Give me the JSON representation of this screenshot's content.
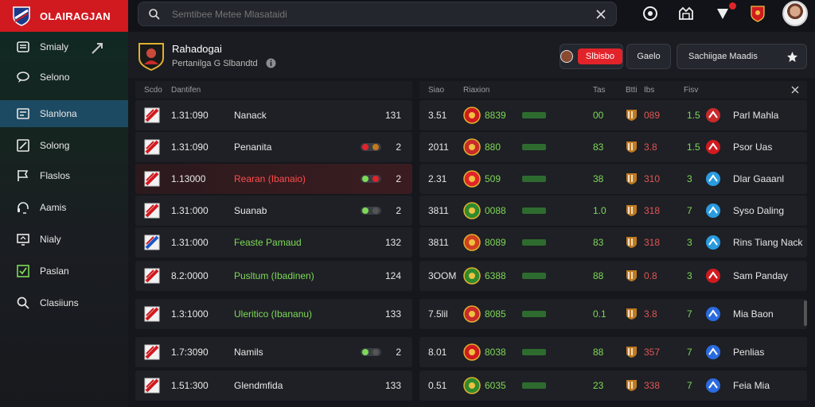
{
  "brand": {
    "name": "OLAIRAGJAN"
  },
  "sidebar": {
    "items": [
      {
        "label": "Smialy",
        "icon": "list-icon"
      },
      {
        "label": "Selono",
        "icon": "chat-icon"
      },
      {
        "label": "Slanlona",
        "icon": "cards-icon"
      },
      {
        "label": "Solong",
        "icon": "edit-icon"
      },
      {
        "label": "Flaslos",
        "icon": "flag-icon"
      },
      {
        "label": "Aamis",
        "icon": "headset-icon"
      },
      {
        "label": "Nialy",
        "icon": "monitor-icon"
      },
      {
        "label": "Paslan",
        "icon": "check-icon"
      },
      {
        "label": "Clasiiuns",
        "icon": "search-icon"
      }
    ],
    "active_index": 2
  },
  "search": {
    "placeholder": "Semtibee Metee Mlasataidi"
  },
  "header": {
    "club_name": "Rahadogai",
    "club_sub": "Pertanilga G Slbandtd",
    "live_label": "Slbisbo",
    "games_label": "Gaelo",
    "matches_label": "Sachiigae Maadis"
  },
  "left_table": {
    "columns": [
      "Scdo",
      "Dantifen"
    ],
    "rows": [
      {
        "time": "1.31:090",
        "team": "Nanack",
        "num": "131",
        "team_color": "#e8e8e8",
        "toggle": ""
      },
      {
        "time": "1.31:090",
        "team": "Penanita",
        "num": "2",
        "team_color": "#e8e8e8",
        "toggle": "red"
      },
      {
        "time": "1.13000",
        "team": "Rearan (Ibanaio)",
        "num": "2",
        "team_color": "#ff4d4d",
        "toggle": "red-green"
      },
      {
        "time": "1.31:000",
        "team": "Suanab",
        "num": "2",
        "team_color": "#e8e8e8",
        "toggle": "green"
      },
      {
        "time": "1.31:000",
        "team": "Feaste Pamaud",
        "num": "132",
        "team_color": "#7ed957",
        "toggle": ""
      },
      {
        "time": "8.2:0000",
        "team": "Pusltum (Ibadinen)",
        "num": "124",
        "team_color": "#7ed957",
        "toggle": ""
      },
      {
        "time": "1.3:1000",
        "team": "Uleritico (Ibananu)",
        "num": "133",
        "team_color": "#7ed957",
        "toggle": ""
      },
      {
        "time": "1.7:3090",
        "team": "Namils",
        "num": "2",
        "team_color": "#e8e8e8",
        "toggle": "green"
      },
      {
        "time": "1.51:300",
        "team": "Glendmfida",
        "num": "133",
        "team_color": "#e8e8e8",
        "toggle": ""
      }
    ]
  },
  "right_table": {
    "columns": [
      "Siao",
      "Riaxion",
      "Tas",
      "Btti",
      "Ibs",
      "Fisv"
    ],
    "rows": [
      {
        "score": "3.51",
        "odd": "8839",
        "c1": "00",
        "c2": "089",
        "c3": "1.5",
        "player": "Parl Mahla"
      },
      {
        "score": "2011",
        "odd": "880",
        "c1": "83",
        "c2": "3.8",
        "c3": "1.5",
        "player": "Psor Uas"
      },
      {
        "score": "2.31",
        "odd": "509",
        "c1": "38",
        "c2": "310",
        "c3": "3",
        "player": "Dlar Gaaanl"
      },
      {
        "score": "3811",
        "odd": "0088",
        "c1": "1.0",
        "c2": "318",
        "c3": "7",
        "player": "Syso Daling"
      },
      {
        "score": "3811",
        "odd": "8089",
        "c1": "83",
        "c2": "318",
        "c3": "3",
        "player": "Rins Tiang Nack"
      },
      {
        "score": "3OOM",
        "odd": "6388",
        "c1": "88",
        "c2": "0.8",
        "c3": "3",
        "player": "Sam Panday"
      },
      {
        "score": "7.5lil",
        "odd": "8085",
        "c1": "0.1",
        "c2": "3.8",
        "c3": "7",
        "player": "Mia Baon"
      },
      {
        "score": "8.01",
        "odd": "8038",
        "c1": "88",
        "c2": "357",
        "c3": "7",
        "player": "Penlias"
      },
      {
        "score": "0.51",
        "odd": "6035",
        "c1": "23",
        "c2": "338",
        "c3": "7",
        "player": "Feia Mia"
      }
    ]
  },
  "colors": {
    "accent_red": "#d01a1f",
    "active_blue": "#1d4a63",
    "positive_green": "#7ed957",
    "negative_red": "#e05555"
  }
}
